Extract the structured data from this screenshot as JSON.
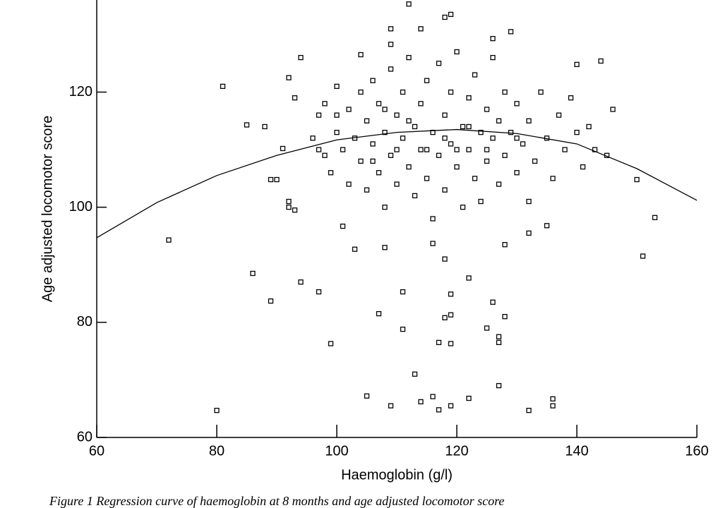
{
  "chart_data": {
    "type": "scatter",
    "xlabel": "Haemoglobin (g/l)",
    "ylabel": "Age adjusted locomotor score",
    "caption": "Figure 1    Regression curve of haemoglobin at 8 months and age adjusted locomotor score",
    "xlim": [
      60,
      160
    ],
    "xticks": [
      60,
      80,
      100,
      120,
      140,
      160
    ],
    "ylim": [
      60,
      136
    ],
    "yticks": [
      60,
      80,
      100,
      120
    ],
    "series": [
      {
        "color": "#000000",
        "marker": "square",
        "x": [
          72,
          80,
          81,
          85,
          86,
          88,
          89,
          94,
          97,
          99,
          101,
          103,
          105,
          107,
          108,
          109,
          111,
          111,
          113,
          114,
          116,
          117,
          119,
          117,
          119,
          119,
          118,
          119,
          122,
          122,
          125,
          126,
          127,
          127,
          127,
          128,
          132,
          136,
          136,
          151,
          153,
          150,
          146,
          145,
          144,
          140,
          132,
          135,
          128,
          118,
          116,
          112,
          119,
          118,
          109,
          114,
          129,
          126,
          109,
          104,
          94,
          92,
          93,
          91,
          90,
          92,
          92,
          93,
          89,
          96,
          97,
          98,
          98,
          99,
          100,
          100,
          101,
          102,
          102,
          103,
          104,
          104,
          105,
          105,
          106,
          106,
          107,
          107,
          108,
          108,
          109,
          109,
          110,
          110,
          111,
          111,
          112,
          112,
          113,
          113,
          114,
          114,
          115,
          115,
          116,
          116,
          117,
          117,
          118,
          118,
          119,
          119,
          120,
          120,
          121,
          121,
          122,
          122,
          123,
          123,
          124,
          124,
          125,
          125,
          126,
          126,
          127,
          127,
          128,
          128,
          129,
          130,
          130,
          131,
          132,
          132,
          133,
          134,
          135,
          136,
          137,
          138,
          139,
          140,
          141,
          142,
          143,
          110,
          115,
          120,
          125,
          112,
          118,
          122,
          108,
          106,
          130,
          100,
          97
        ],
        "values": [
          94.3,
          64.7,
          121,
          114.3,
          88.5,
          114,
          83.7,
          87,
          85.3,
          76.3,
          96.7,
          92.7,
          67.2,
          81.5,
          93,
          65.5,
          85.3,
          78.8,
          71,
          66.2,
          67.1,
          64.8,
          65.5,
          76.5,
          76.3,
          81.3,
          80.8,
          84.9,
          87.7,
          66.8,
          79,
          83.5,
          69,
          77.5,
          76.5,
          81,
          64.7,
          66.7,
          65.5,
          91.5,
          98.2,
          104.8,
          117,
          109,
          125.4,
          124.8,
          95.5,
          96.8,
          93.5,
          91,
          93.7,
          135.3,
          133.5,
          133,
          131,
          131,
          130.5,
          129.3,
          128.3,
          126.5,
          126,
          122.5,
          119,
          110.2,
          104.8,
          101,
          100,
          99.5,
          104.8,
          112,
          116,
          109,
          118,
          106,
          113,
          121,
          110,
          104,
          117,
          112,
          108,
          120,
          115,
          103,
          111,
          122,
          106,
          118,
          113,
          100,
          109,
          124,
          116,
          104,
          112,
          120,
          107,
          126,
          114,
          102,
          110,
          118,
          105,
          122,
          113,
          98,
          109,
          125,
          116,
          103,
          111,
          120,
          107,
          127,
          114,
          100,
          110,
          119,
          105,
          123,
          113,
          101,
          108,
          117,
          112,
          126,
          104,
          115,
          109,
          120,
          113,
          106,
          118,
          111,
          101,
          115,
          108,
          120,
          112,
          105,
          116,
          110,
          119,
          113,
          107,
          114,
          110,
          110,
          110,
          110,
          110,
          115,
          112,
          114,
          117,
          108,
          112,
          116,
          110
        ]
      },
      {
        "color": "#000000",
        "style": "line",
        "x": [
          60,
          70,
          80,
          90,
          100,
          110,
          120,
          130,
          140,
          150,
          160
        ],
        "values": [
          94.7,
          100.8,
          105.5,
          109,
          111.7,
          113,
          113.5,
          112.8,
          111,
          106.7,
          101.2
        ]
      }
    ]
  }
}
